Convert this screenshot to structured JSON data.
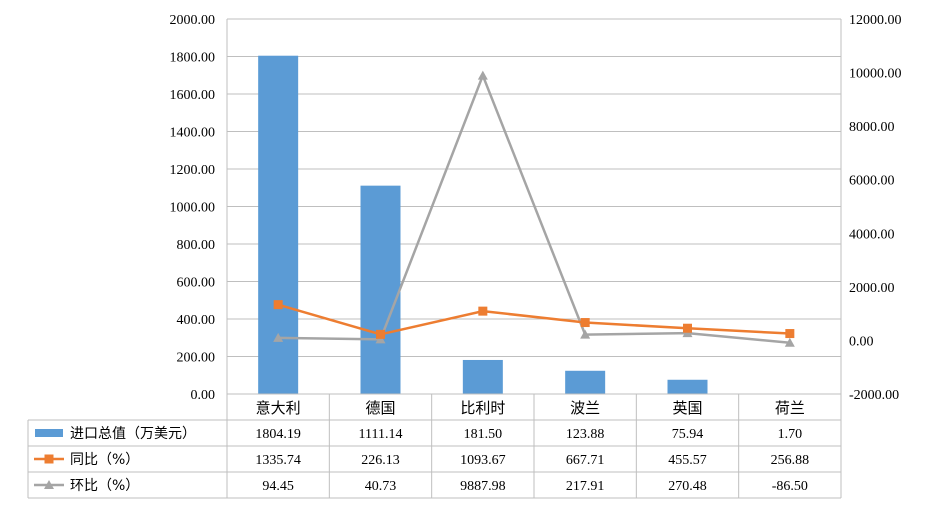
{
  "chart_data": {
    "type": "bar",
    "categories": [
      "意大利",
      "德国",
      "比利时",
      "波兰",
      "英国",
      "荷兰"
    ],
    "left_axis": {
      "ylim": [
        0,
        2000
      ],
      "ticks": [
        "0.00",
        "200.00",
        "400.00",
        "600.00",
        "800.00",
        "1000.00",
        "1200.00",
        "1400.00",
        "1600.00",
        "1800.00",
        "2000.00"
      ]
    },
    "right_axis": {
      "ylim": [
        -2000,
        12000
      ],
      "ticks": [
        "-2000.00",
        "0.00",
        "2000.00",
        "4000.00",
        "6000.00",
        "8000.00",
        "10000.00",
        "12000.00"
      ]
    },
    "grid": true,
    "series": [
      {
        "name": "进口总值（万美元）",
        "type": "bar",
        "axis": "left",
        "color": "#5b9bd5",
        "values": [
          1804.19,
          1111.14,
          181.5,
          123.88,
          75.94,
          1.7
        ],
        "labels": [
          "1804.19",
          "1111.14",
          "181.50",
          "123.88",
          "75.94",
          "1.70"
        ]
      },
      {
        "name": "同比（%）",
        "type": "line",
        "axis": "right",
        "color": "#ed7d31",
        "marker": "square",
        "values": [
          1335.74,
          226.13,
          1093.67,
          667.71,
          455.57,
          256.88
        ],
        "labels": [
          "1335.74",
          "226.13",
          "1093.67",
          "667.71",
          "455.57",
          "256.88"
        ]
      },
      {
        "name": "环比（%）",
        "type": "line",
        "axis": "right",
        "color": "#a5a5a5",
        "marker": "triangle",
        "values": [
          94.45,
          40.73,
          9887.98,
          217.91,
          270.48,
          -86.5
        ],
        "labels": [
          "94.45",
          "40.73",
          "9887.98",
          "217.91",
          "270.48",
          "-86.50"
        ]
      }
    ],
    "data_table": true
  }
}
